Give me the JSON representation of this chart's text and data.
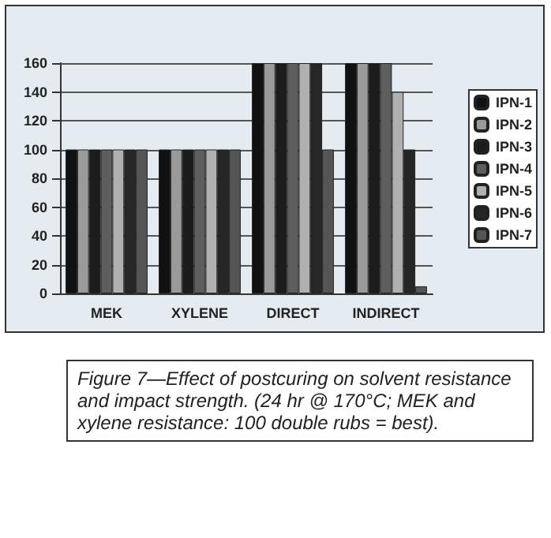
{
  "chart_data": {
    "type": "bar",
    "categories": [
      "MEK",
      "XYLENE",
      "DIRECT",
      "INDIRECT"
    ],
    "series": [
      {
        "name": "IPN-1",
        "color": "#111111",
        "values": [
          100,
          100,
          160,
          160
        ]
      },
      {
        "name": "IPN-2",
        "color": "#9a9a9a",
        "values": [
          100,
          100,
          160,
          160
        ]
      },
      {
        "name": "IPN-3",
        "color": "#1c1c1c",
        "values": [
          100,
          100,
          160,
          160
        ]
      },
      {
        "name": "IPN-4",
        "color": "#5e5e5e",
        "values": [
          100,
          100,
          160,
          160
        ]
      },
      {
        "name": "IPN-5",
        "color": "#b0b0b0",
        "values": [
          100,
          100,
          160,
          140
        ]
      },
      {
        "name": "IPN-6",
        "color": "#262626",
        "values": [
          100,
          100,
          160,
          100
        ]
      },
      {
        "name": "IPN-7",
        "color": "#555555",
        "values": [
          100,
          100,
          100,
          5
        ]
      }
    ],
    "ylim": [
      0,
      160
    ],
    "yticks": [
      0,
      20,
      40,
      60,
      80,
      100,
      120,
      140,
      160
    ],
    "grid": "y",
    "legend": "right",
    "annotations": [
      "Figure 7—Effect of postcuring on solvent resistance and impact strength. (24 hr @ 170°C; MEK and xylene resistance: 100 double rubs = best)."
    ]
  }
}
